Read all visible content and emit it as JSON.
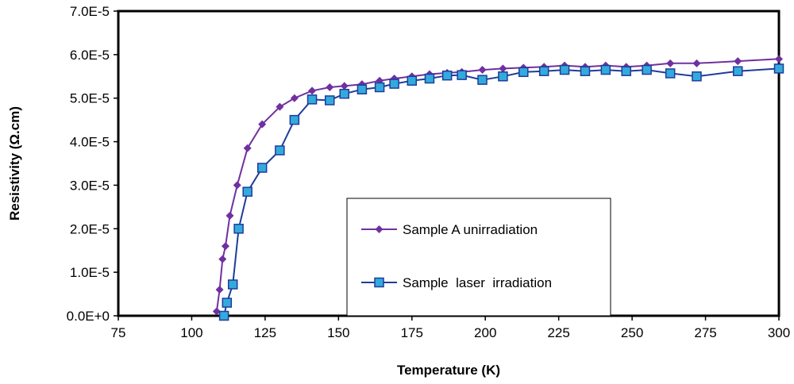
{
  "chart_data": {
    "type": "line",
    "title": "",
    "xlabel": "Temperature (K)",
    "ylabel": "Resistivity (Ω.cm)",
    "xlim": [
      75,
      300
    ],
    "ylim": [
      0,
      7e-05
    ],
    "xticks": [
      75,
      100,
      125,
      150,
      175,
      200,
      225,
      250,
      275,
      300
    ],
    "xtick_labels": [
      "75",
      "100",
      "125",
      "150",
      "175",
      "200",
      "225",
      "250",
      "275",
      "300"
    ],
    "yticks": [
      0,
      1e-05,
      2e-05,
      3e-05,
      4e-05,
      5e-05,
      6e-05,
      7e-05
    ],
    "ytick_labels": [
      "0.0E+0",
      "1.0E-5",
      "2.0E-5",
      "3.0E-5",
      "4.0E-5",
      "5.0E-5",
      "6.0E-5",
      "7.0E-5"
    ],
    "grid": false,
    "legend_position": "center-bottom",
    "series": [
      {
        "name": "Sample A unirradiation",
        "color": "#7030A0",
        "marker": "diamond",
        "x": [
          108.5,
          109.5,
          110.5,
          111.5,
          113,
          115.5,
          119,
          124,
          130,
          135,
          141,
          147,
          152,
          158,
          164,
          169,
          175,
          181,
          187,
          192,
          199,
          206,
          213,
          220,
          227,
          234,
          241,
          248,
          255,
          263,
          272,
          286,
          300
        ],
        "values": [
          1e-06,
          6e-06,
          1.3e-05,
          1.6e-05,
          2.3e-05,
          3e-05,
          3.85e-05,
          4.4e-05,
          4.8e-05,
          5e-05,
          5.17e-05,
          5.25e-05,
          5.28e-05,
          5.32e-05,
          5.4e-05,
          5.45e-05,
          5.5e-05,
          5.55e-05,
          5.58e-05,
          5.6e-05,
          5.65e-05,
          5.68e-05,
          5.7e-05,
          5.72e-05,
          5.75e-05,
          5.72e-05,
          5.75e-05,
          5.72e-05,
          5.75e-05,
          5.8e-05,
          5.8e-05,
          5.85e-05,
          5.9e-05
        ]
      },
      {
        "name": "Sample  laser  irradiation",
        "color": "#1F3D99",
        "fill": "#33AADD",
        "marker": "square",
        "x": [
          111,
          112,
          114,
          116,
          119,
          124,
          130,
          135,
          141,
          147,
          152,
          158,
          164,
          169,
          175,
          181,
          187,
          192,
          199,
          206,
          213,
          220,
          227,
          234,
          241,
          248,
          255,
          263,
          272,
          286,
          300
        ],
        "values": [
          0,
          3e-06,
          7.2e-06,
          2e-05,
          2.85e-05,
          3.4e-05,
          3.8e-05,
          4.5e-05,
          4.97e-05,
          4.95e-05,
          5.1e-05,
          5.2e-05,
          5.25e-05,
          5.33e-05,
          5.4e-05,
          5.45e-05,
          5.52e-05,
          5.53e-05,
          5.42e-05,
          5.5e-05,
          5.6e-05,
          5.62e-05,
          5.65e-05,
          5.62e-05,
          5.65e-05,
          5.62e-05,
          5.65e-05,
          5.57e-05,
          5.5e-05,
          5.62e-05,
          5.68e-05
        ]
      }
    ]
  }
}
